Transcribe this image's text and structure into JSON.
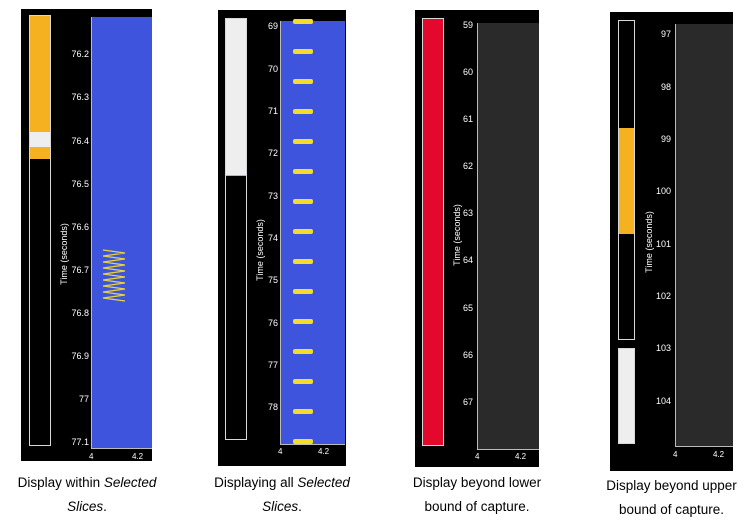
{
  "panels": [
    {
      "ylabel": "Time (seconds)",
      "ticks": [
        "76.2",
        "76.3",
        "76.4",
        "76.5",
        "76.6",
        "76.7",
        "76.8",
        "76.9",
        "77",
        "77.1"
      ],
      "xticks": [
        "4",
        "4.2"
      ],
      "caption": {
        "prefix": "Display within ",
        "emph": "Selected",
        "line2_emph": "Slices",
        "line2_suffix": "."
      },
      "colors": {
        "gold": "#f5b120",
        "white": "#eeeeee",
        "plot": "#3f54dd"
      }
    },
    {
      "ylabel": "Time (seconds)",
      "ticks": [
        "69",
        "70",
        "71",
        "72",
        "73",
        "74",
        "75",
        "76",
        "77",
        "78"
      ],
      "xticks": [
        "4",
        "4.2"
      ],
      "caption": {
        "prefix": "Displaying all ",
        "emph": "Selected",
        "line2_emph": "Slices",
        "line2_suffix": "."
      },
      "colors": {
        "white": "#eeeeee",
        "plot": "#3f54dd",
        "dash": "#f4dd2a"
      }
    },
    {
      "ylabel": "Time (seconds)",
      "ticks": [
        "59",
        "60",
        "61",
        "62",
        "63",
        "64",
        "65",
        "66",
        "67"
      ],
      "xticks": [
        "4",
        "4.2"
      ],
      "caption": {
        "line1": "Display beyond lower",
        "line2": "bound of capture."
      },
      "colors": {
        "red": "#e4082c",
        "plot": "#2a2a2a"
      }
    },
    {
      "ylabel": "Time (seconds)",
      "ticks": [
        "97",
        "98",
        "99",
        "100",
        "101",
        "102",
        "103",
        "104"
      ],
      "xticks": [
        "4",
        "4.2"
      ],
      "caption": {
        "line1": "Display beyond upper",
        "line2": "bound of capture."
      },
      "colors": {
        "gold": "#f5b120",
        "white": "#eeeeee",
        "plot": "#2a2a2a"
      }
    }
  ]
}
